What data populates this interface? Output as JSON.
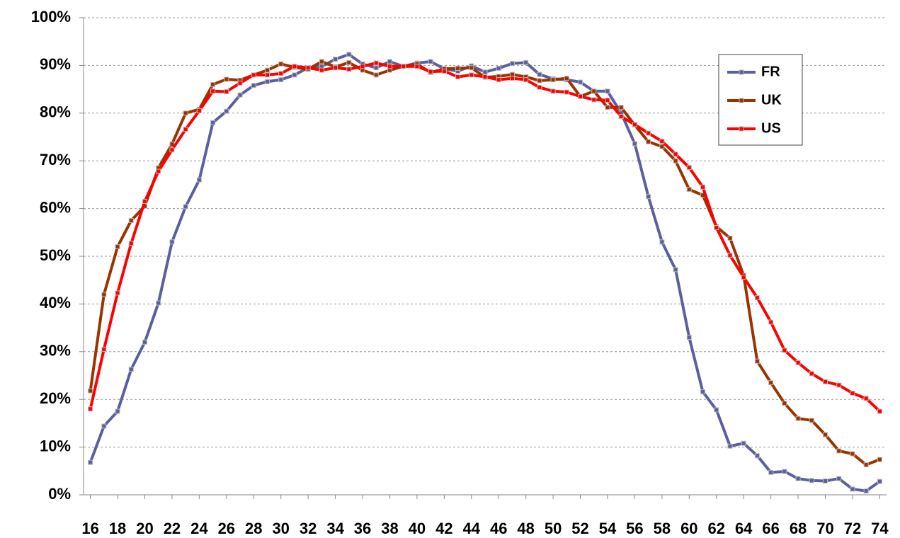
{
  "chart_data": {
    "type": "line",
    "x": [
      16,
      17,
      18,
      19,
      20,
      21,
      22,
      23,
      24,
      25,
      26,
      27,
      28,
      29,
      30,
      31,
      32,
      33,
      34,
      35,
      36,
      37,
      38,
      39,
      40,
      41,
      42,
      43,
      44,
      45,
      46,
      47,
      48,
      49,
      50,
      51,
      52,
      53,
      54,
      55,
      56,
      57,
      58,
      59,
      60,
      61,
      62,
      63,
      64,
      65,
      66,
      67,
      68,
      69,
      70,
      71,
      72,
      73,
      74
    ],
    "series": [
      {
        "name": "FR",
        "color": "#5b5f9e",
        "values": [
          6.8,
          14.4,
          17.5,
          26.3,
          32,
          40.2,
          53,
          60.4,
          66,
          78,
          80.4,
          83.8,
          85.8,
          86.6,
          87,
          88,
          89.5,
          89.8,
          91.3,
          92.3,
          90.3,
          89.5,
          90.8,
          89.8,
          90.5,
          90.8,
          89.3,
          88.8,
          89.9,
          88.6,
          89.4,
          90.4,
          90.6,
          88.1,
          87.2,
          87,
          86.5,
          84.6,
          84.6,
          80,
          73.6,
          62.5,
          53,
          47.2,
          33,
          21.6,
          17.8,
          10.2,
          10.8,
          8.2,
          4.7,
          4.9,
          3.4,
          3,
          2.9,
          3.4,
          1.2,
          0.8,
          2.8
        ]
      },
      {
        "name": "UK",
        "color": "#993300",
        "values": [
          21.8,
          42,
          52,
          57.5,
          60.5,
          68.5,
          73.5,
          80,
          80.8,
          86,
          87.1,
          86.9,
          88,
          89,
          90.3,
          89.6,
          89.2,
          90.8,
          89.7,
          90.6,
          89,
          88,
          89,
          89.8,
          90.3,
          88.5,
          89.3,
          89.4,
          89.5,
          87.5,
          87.7,
          88.1,
          87.6,
          86.8,
          87,
          87.3,
          83.5,
          84.6,
          81.2,
          81.2,
          77.5,
          74,
          73,
          70,
          64,
          62.8,
          56.2,
          53.8,
          46,
          28,
          23.5,
          19.2,
          16,
          15.6,
          12.6,
          9.2,
          8.6,
          6.3,
          7.4
        ]
      },
      {
        "name": "US",
        "color": "#ff0000",
        "values": [
          18,
          30.5,
          42.3,
          52.7,
          61.5,
          67.8,
          72.3,
          76.6,
          80.5,
          84.6,
          84.5,
          86.3,
          88,
          88,
          88.3,
          89.8,
          89.5,
          89,
          89.5,
          89.2,
          89.8,
          90.5,
          89.8,
          89.8,
          89.8,
          88.7,
          88.8,
          87.6,
          88,
          87.6,
          87,
          87.3,
          87,
          85.4,
          84.6,
          84.4,
          83.5,
          82.8,
          82.7,
          79.3,
          77.6,
          75.8,
          74.1,
          71.4,
          68.6,
          64.5,
          56,
          50.2,
          45.6,
          41.3,
          36.2,
          30.3,
          27.7,
          25.4,
          23.7,
          23,
          21.3,
          20.2,
          17.5
        ]
      }
    ],
    "xlim": [
      15.5,
      74.5
    ],
    "xticks": [
      16,
      18,
      20,
      22,
      24,
      26,
      28,
      30,
      32,
      34,
      36,
      38,
      40,
      42,
      44,
      46,
      48,
      50,
      52,
      54,
      56,
      58,
      60,
      62,
      64,
      66,
      68,
      70,
      72,
      74
    ],
    "ylim": [
      0,
      100
    ],
    "yticks": [
      {
        "value": 0,
        "label": "0%"
      },
      {
        "value": 10,
        "label": "10%"
      },
      {
        "value": 20,
        "label": "20%"
      },
      {
        "value": 30,
        "label": "30%"
      },
      {
        "value": 40,
        "label": "40%"
      },
      {
        "value": 50,
        "label": "50%"
      },
      {
        "value": 60,
        "label": "60%"
      },
      {
        "value": 70,
        "label": "70%"
      },
      {
        "value": 80,
        "label": "80%"
      },
      {
        "value": 90,
        "label": "90%"
      },
      {
        "value": 100,
        "label": "100%"
      }
    ],
    "grid": true,
    "legend": "upper right"
  }
}
